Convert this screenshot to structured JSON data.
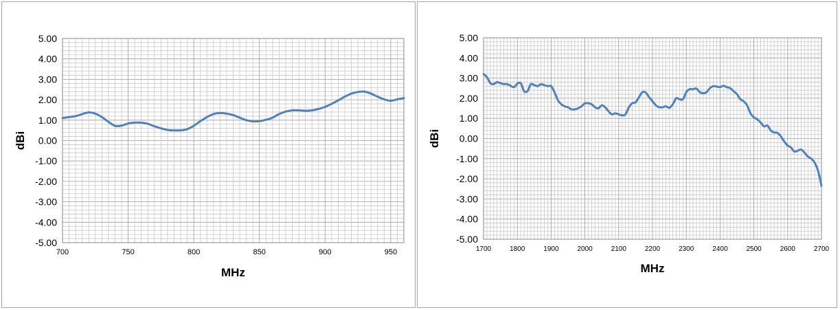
{
  "chart_data": [
    {
      "type": "line",
      "title": "",
      "xlabel": "MHz",
      "ylabel": "dBi",
      "xlim": [
        700,
        960
      ],
      "ylim": [
        -5,
        5
      ],
      "x_ticks": [
        "700",
        "750",
        "800",
        "850",
        "900",
        "950"
      ],
      "y_ticks": [
        "5.00",
        "4.00",
        "3.00",
        "2.00",
        "1.00",
        "0.00",
        "-1.00",
        "-2.00",
        "-3.00",
        "-4.00",
        "-5.00"
      ],
      "grid": true,
      "legend": "none",
      "series_color": "#4f81bd",
      "series": [
        {
          "x": [
            700,
            710,
            715,
            720,
            725,
            730,
            735,
            740,
            745,
            750,
            755,
            760,
            765,
            770,
            775,
            780,
            785,
            790,
            795,
            800,
            805,
            810,
            815,
            820,
            825,
            830,
            835,
            840,
            845,
            850,
            855,
            860,
            865,
            870,
            875,
            880,
            885,
            890,
            895,
            900,
            905,
            910,
            915,
            920,
            925,
            930,
            935,
            940,
            945,
            950,
            955,
            960
          ],
          "y": [
            1.1,
            1.2,
            1.3,
            1.38,
            1.32,
            1.15,
            0.92,
            0.72,
            0.73,
            0.84,
            0.88,
            0.88,
            0.82,
            0.7,
            0.6,
            0.52,
            0.5,
            0.5,
            0.56,
            0.72,
            0.95,
            1.15,
            1.3,
            1.35,
            1.32,
            1.25,
            1.12,
            1.0,
            0.94,
            0.95,
            1.02,
            1.12,
            1.3,
            1.42,
            1.48,
            1.48,
            1.46,
            1.48,
            1.55,
            1.65,
            1.8,
            1.97,
            2.15,
            2.3,
            2.38,
            2.4,
            2.3,
            2.15,
            2.02,
            1.95,
            2.02,
            2.08
          ]
        }
      ]
    },
    {
      "type": "line",
      "title": "",
      "xlabel": "MHz",
      "ylabel": "dBi",
      "xlim": [
        1700,
        2700
      ],
      "ylim": [
        -5,
        5
      ],
      "x_ticks": [
        "1700",
        "1800",
        "1900",
        "2000",
        "2100",
        "2200",
        "2300",
        "2400",
        "2500",
        "2600",
        "2700"
      ],
      "y_ticks": [
        "5.00",
        "4.00",
        "3.00",
        "2.00",
        "1.00",
        "0.00",
        "-1.00",
        "-2.00",
        "-3.00",
        "-4.00",
        "-5.00"
      ],
      "grid": true,
      "legend": "none",
      "series_color": "#4f81bd",
      "series": [
        {
          "x": [
            1700,
            1710,
            1720,
            1730,
            1740,
            1750,
            1760,
            1770,
            1780,
            1790,
            1800,
            1810,
            1820,
            1830,
            1840,
            1850,
            1860,
            1870,
            1880,
            1890,
            1900,
            1910,
            1920,
            1930,
            1940,
            1950,
            1960,
            1970,
            1980,
            1990,
            2000,
            2010,
            2020,
            2030,
            2040,
            2050,
            2060,
            2070,
            2080,
            2090,
            2100,
            2110,
            2120,
            2130,
            2140,
            2150,
            2160,
            2170,
            2180,
            2190,
            2200,
            2210,
            2220,
            2230,
            2240,
            2250,
            2260,
            2270,
            2280,
            2290,
            2300,
            2310,
            2320,
            2330,
            2340,
            2350,
            2360,
            2370,
            2380,
            2390,
            2400,
            2410,
            2420,
            2430,
            2440,
            2450,
            2460,
            2470,
            2480,
            2490,
            2500,
            2510,
            2520,
            2530,
            2540,
            2550,
            2560,
            2570,
            2580,
            2590,
            2600,
            2610,
            2620,
            2630,
            2640,
            2650,
            2660,
            2670,
            2680,
            2690,
            2700
          ],
          "y": [
            3.2,
            3.05,
            2.75,
            2.7,
            2.8,
            2.75,
            2.7,
            2.7,
            2.62,
            2.55,
            2.72,
            2.75,
            2.35,
            2.35,
            2.7,
            2.65,
            2.6,
            2.7,
            2.65,
            2.6,
            2.6,
            2.3,
            1.9,
            1.7,
            1.6,
            1.55,
            1.45,
            1.45,
            1.5,
            1.6,
            1.75,
            1.75,
            1.7,
            1.55,
            1.5,
            1.65,
            1.55,
            1.35,
            1.2,
            1.25,
            1.2,
            1.15,
            1.2,
            1.55,
            1.75,
            1.8,
            2.05,
            2.3,
            2.28,
            2.05,
            1.85,
            1.65,
            1.55,
            1.55,
            1.6,
            1.52,
            1.7,
            2.0,
            1.95,
            1.95,
            2.3,
            2.45,
            2.45,
            2.48,
            2.3,
            2.25,
            2.3,
            2.5,
            2.6,
            2.58,
            2.55,
            2.62,
            2.55,
            2.5,
            2.35,
            2.2,
            1.95,
            1.85,
            1.65,
            1.25,
            1.05,
            0.95,
            0.8,
            0.6,
            0.65,
            0.4,
            0.3,
            0.28,
            0.1,
            -0.15,
            -0.35,
            -0.45,
            -0.65,
            -0.6,
            -0.55,
            -0.7,
            -0.9,
            -1.0,
            -1.2,
            -1.6,
            -2.35
          ]
        }
      ]
    }
  ]
}
